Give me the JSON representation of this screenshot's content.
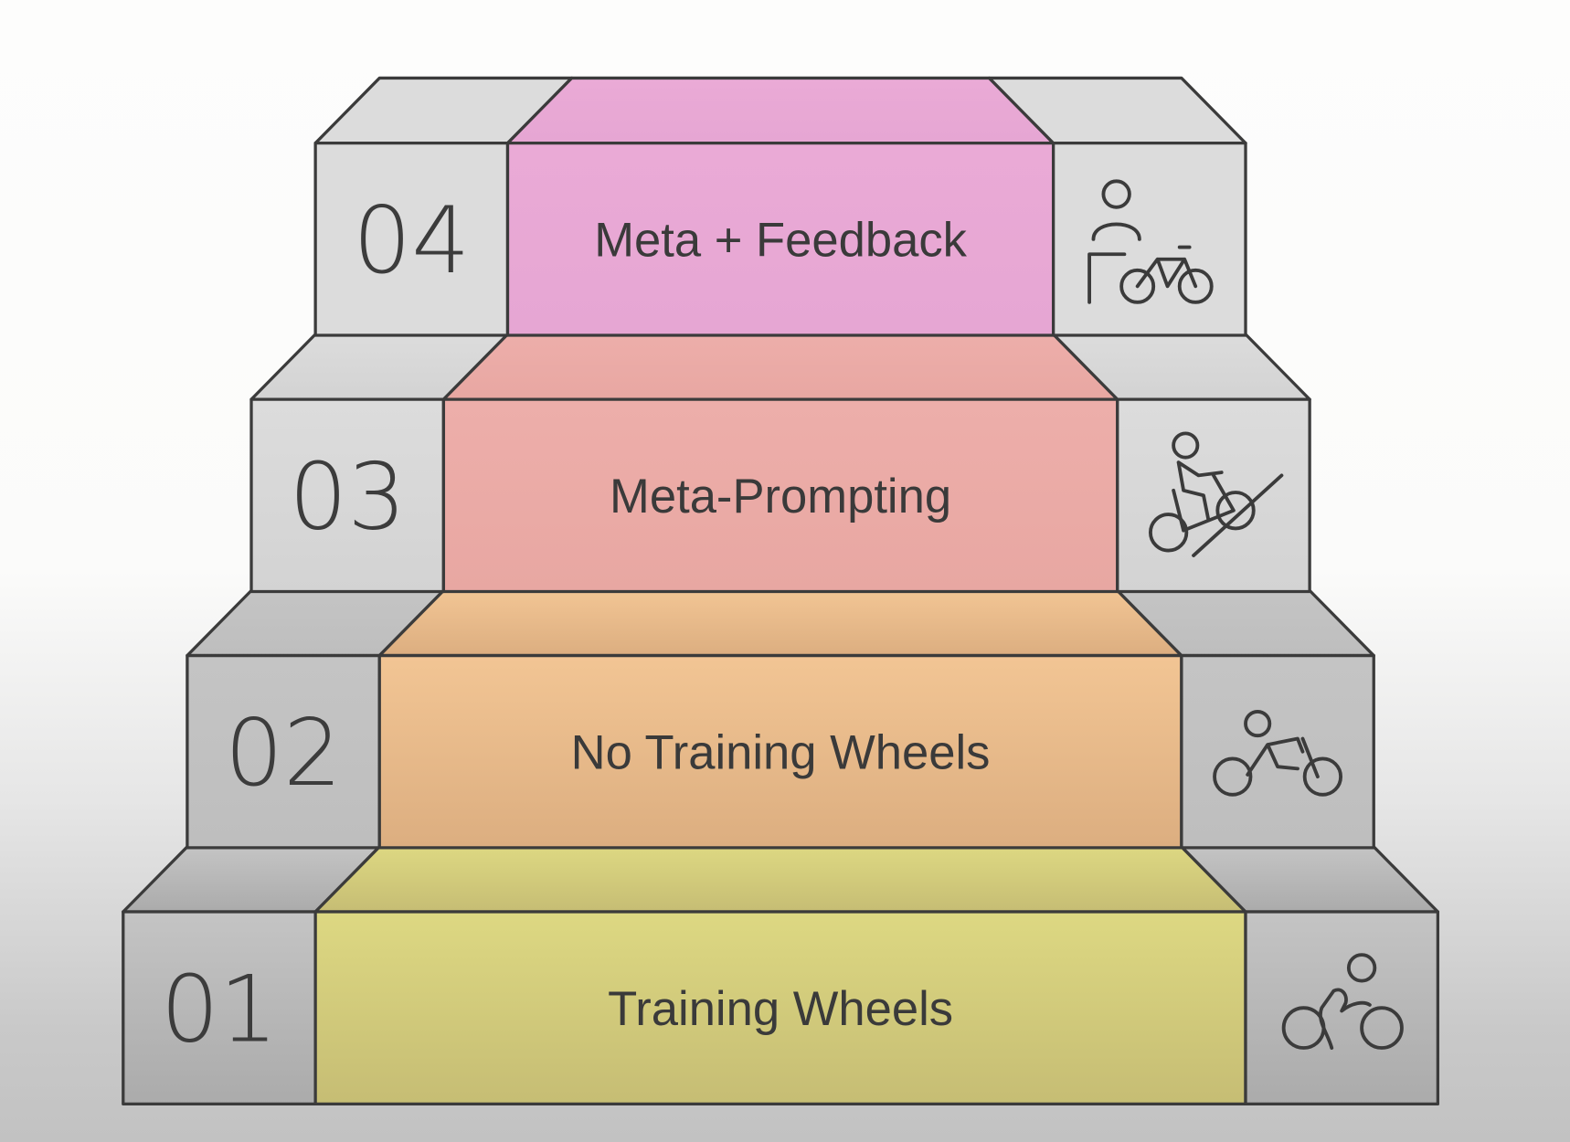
{
  "diagram": {
    "type": "staircase",
    "steps": [
      {
        "number": "01",
        "label": "Training Wheels",
        "color": "#ddd882",
        "color_bottom": "#c6bd74",
        "icon": "cyclist-icon"
      },
      {
        "number": "02",
        "label": "No Training Wheels",
        "color": "#f2c594",
        "color_bottom": "#dcae80",
        "icon": "cyclist-leaning-icon"
      },
      {
        "number": "03",
        "label": "Meta-Prompting",
        "color": "#edaeaa",
        "color_bottom": "#e8a7a2",
        "icon": "cyclist-uphill-icon"
      },
      {
        "number": "04",
        "label": "Meta + Feedback",
        "color": "#eaaad6",
        "color_bottom": "#e6a6d3",
        "icon": "coach-with-bicycle-icon"
      }
    ],
    "side_color_top": "#dcdcdc",
    "side_color_bottom": "#a9a9a9",
    "outline_color": "#3b3b3b"
  }
}
